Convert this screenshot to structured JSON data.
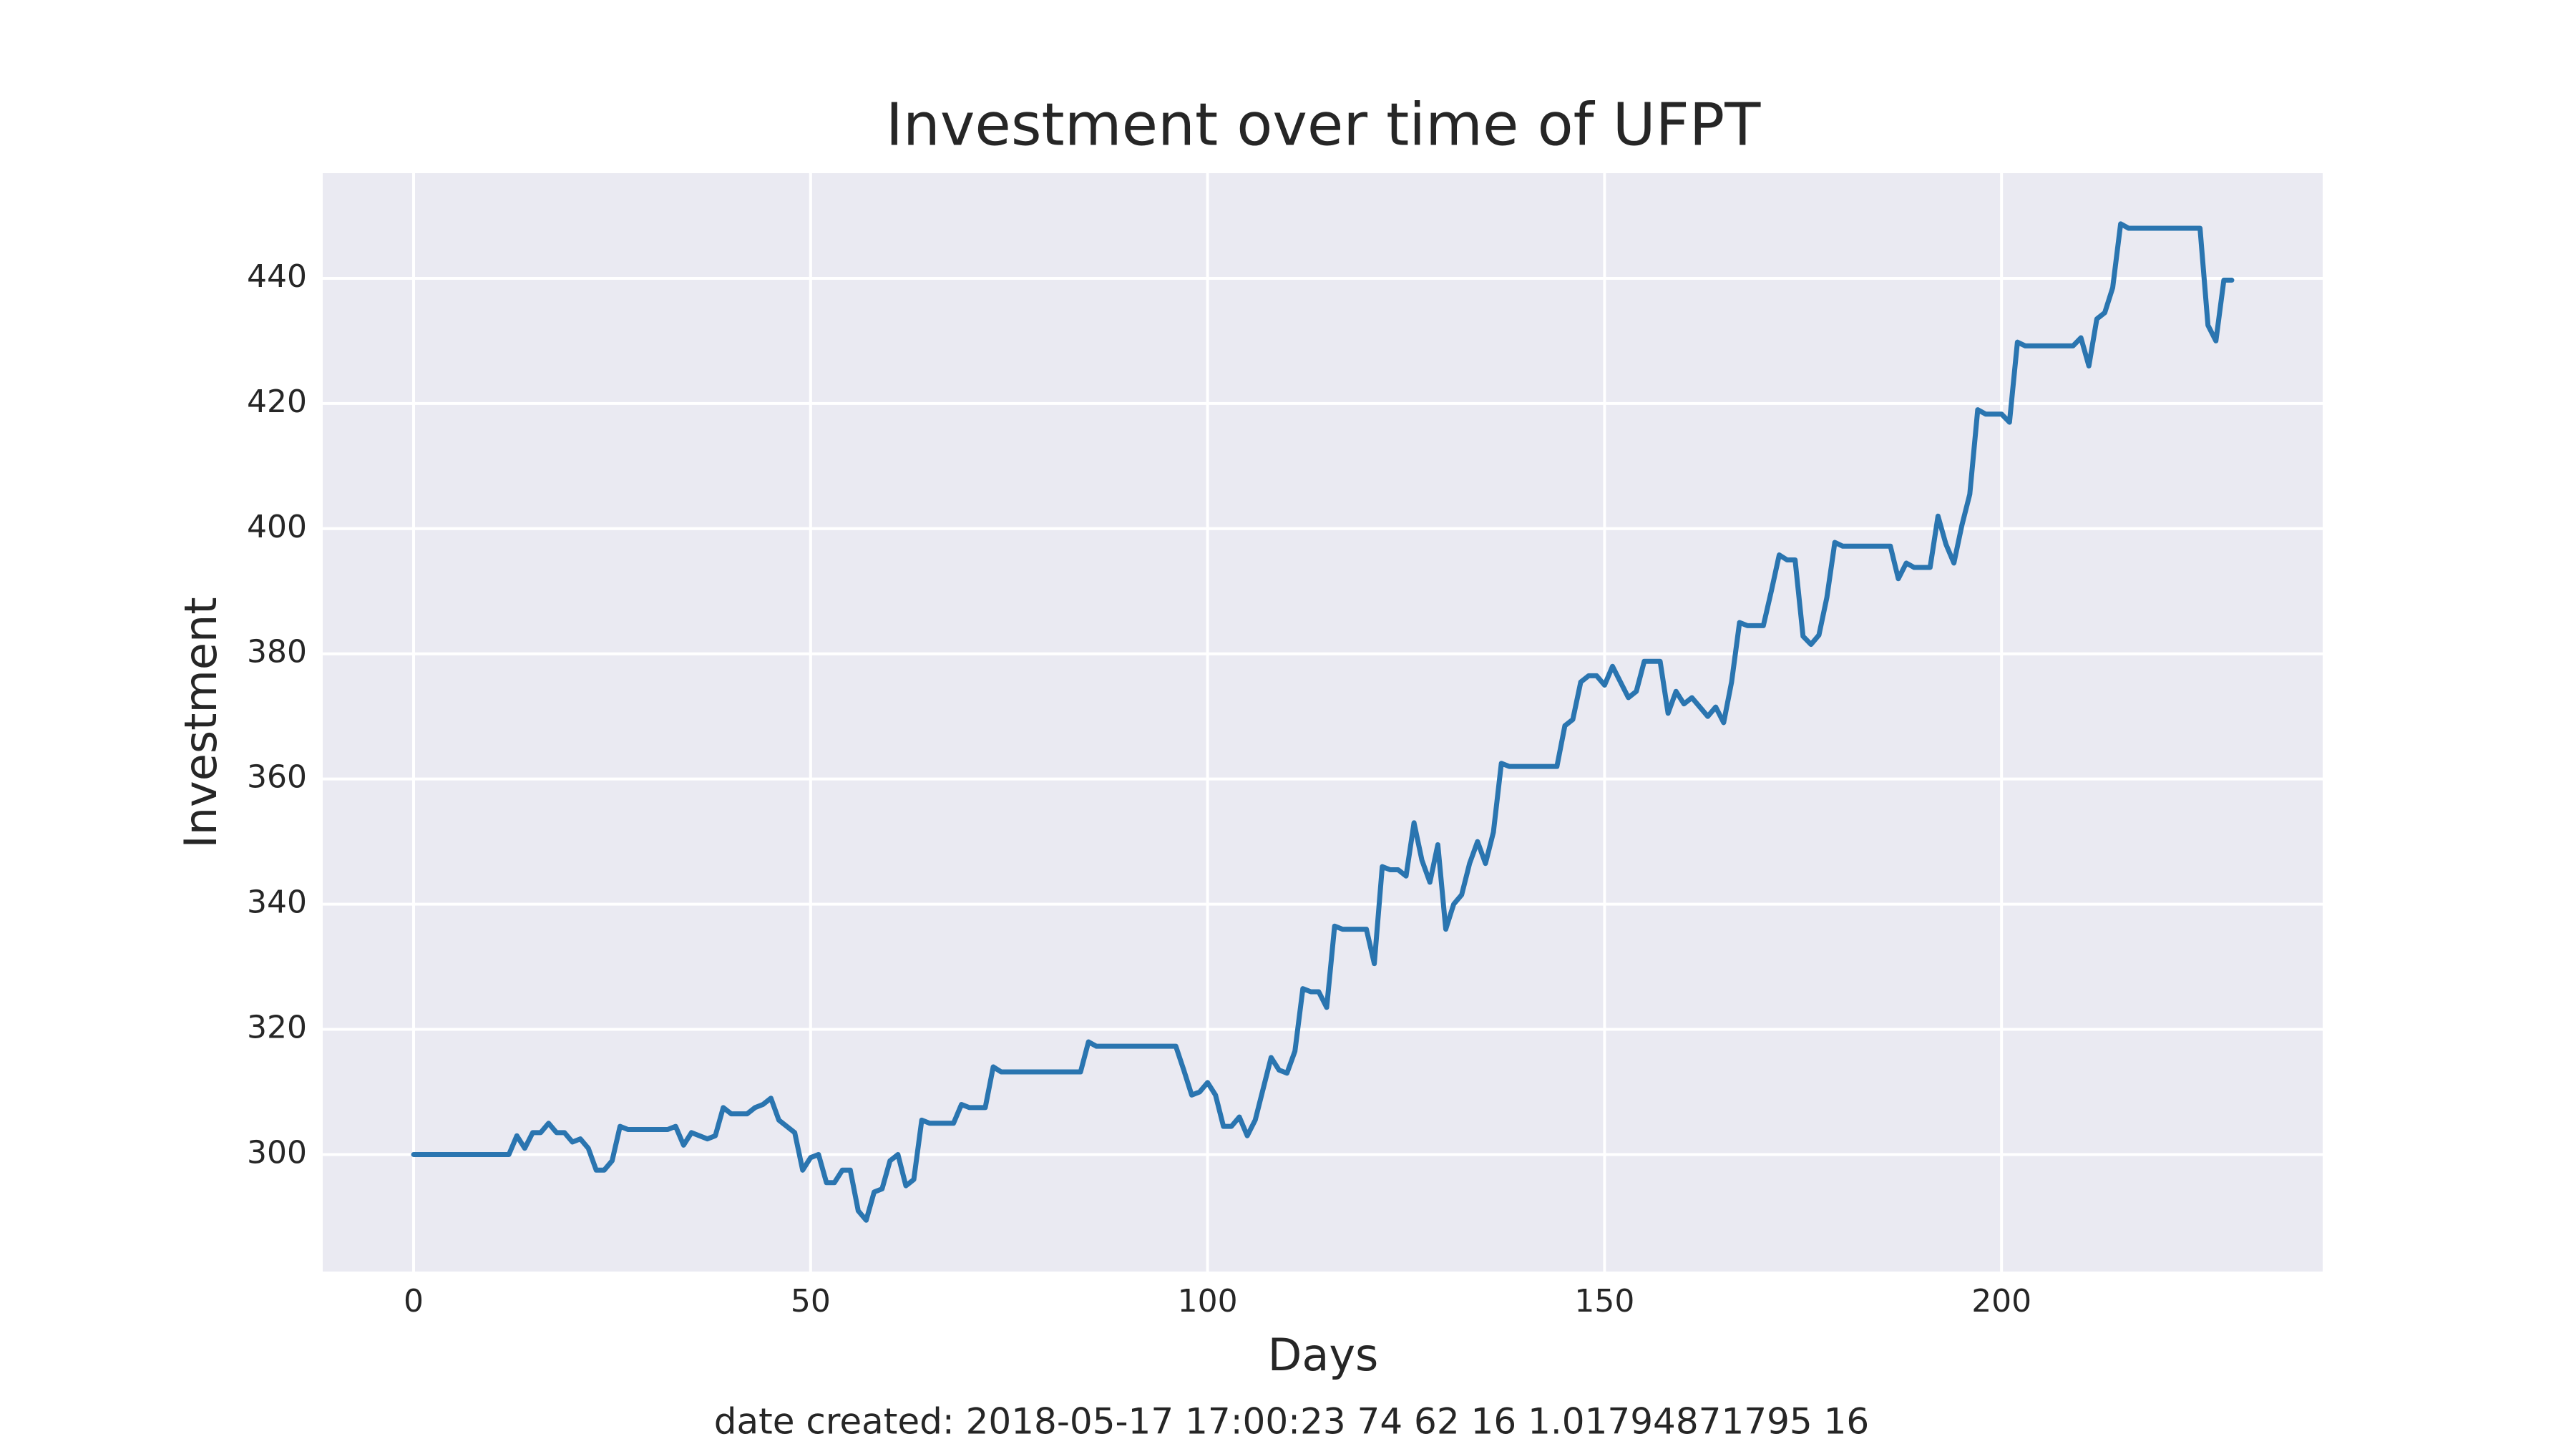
{
  "chart_data": {
    "type": "line",
    "title": "Investment over time of UFPT",
    "xlabel": "Days",
    "ylabel": "Investment",
    "footnote": "date created: 2018-05-17 17:00:23 74 62 16 1.01794871795 16",
    "color": "#2a75b0",
    "grid": true,
    "background": "#eaeaf2",
    "xlim": [
      -11.45,
      240.45
    ],
    "xticks": [
      0,
      50,
      100,
      150,
      200
    ],
    "ylim": [
      281.3,
      456.8
    ],
    "yticks": [
      300,
      320,
      340,
      360,
      380,
      400,
      420,
      440
    ],
    "x": [
      0,
      1,
      2,
      3,
      4,
      5,
      6,
      7,
      8,
      9,
      10,
      11,
      12,
      13,
      14,
      15,
      16,
      17,
      18,
      19,
      20,
      21,
      22,
      23,
      24,
      25,
      26,
      27,
      28,
      29,
      30,
      31,
      32,
      33,
      34,
      35,
      36,
      37,
      38,
      39,
      40,
      41,
      42,
      43,
      44,
      45,
      46,
      47,
      48,
      49,
      50,
      51,
      52,
      53,
      54,
      55,
      56,
      57,
      58,
      59,
      60,
      61,
      62,
      63,
      64,
      65,
      66,
      67,
      68,
      69,
      70,
      71,
      72,
      73,
      74,
      75,
      76,
      77,
      78,
      79,
      80,
      81,
      82,
      83,
      84,
      85,
      86,
      87,
      88,
      89,
      90,
      91,
      92,
      93,
      94,
      95,
      96,
      97,
      98,
      99,
      100,
      101,
      102,
      103,
      104,
      105,
      106,
      107,
      108,
      109,
      110,
      111,
      112,
      113,
      114,
      115,
      116,
      117,
      118,
      119,
      120,
      121,
      122,
      123,
      124,
      125,
      126,
      127,
      128,
      129,
      130,
      131,
      132,
      133,
      134,
      135,
      136,
      137,
      138,
      139,
      140,
      141,
      142,
      143,
      144,
      145,
      146,
      147,
      148,
      149,
      150,
      151,
      152,
      153,
      154,
      155,
      156,
      157,
      158,
      159,
      160,
      161,
      162,
      163,
      164,
      165,
      166,
      167,
      168,
      169,
      170,
      171,
      172,
      173,
      174,
      175,
      176,
      177,
      178,
      179,
      180,
      181,
      182,
      183,
      184,
      185,
      186,
      187,
      188,
      189,
      190,
      191,
      192,
      193,
      194,
      195,
      196,
      197,
      198,
      199,
      200,
      201,
      202,
      203,
      204,
      205,
      206,
      207,
      208,
      209,
      210,
      211,
      212,
      213,
      214,
      215,
      216,
      217,
      218,
      219,
      220,
      221,
      222,
      223,
      224,
      225,
      226,
      227,
      228,
      229
    ],
    "values": [
      300,
      300,
      300,
      300,
      300,
      300,
      300,
      300,
      300,
      300,
      300,
      300,
      300,
      303,
      301,
      303.5,
      303.5,
      305,
      303.5,
      303.5,
      302,
      302.5,
      301,
      297.5,
      297.5,
      299,
      304.5,
      304,
      304,
      304,
      304,
      304,
      304,
      304.5,
      301.5,
      303.5,
      303,
      302.5,
      303,
      307.5,
      306.5,
      306.5,
      306.5,
      307.5,
      308,
      309,
      305.5,
      304.5,
      303.5,
      297.5,
      299.5,
      300,
      295.5,
      295.5,
      297.5,
      297.5,
      291,
      289.5,
      294,
      294.5,
      299,
      300,
      295,
      296,
      305.5,
      305,
      305,
      305,
      305,
      308,
      307.5,
      307.5,
      307.5,
      314,
      313.2,
      313.2,
      313.2,
      313.2,
      313.2,
      313.2,
      313.2,
      313.2,
      313.2,
      313.2,
      313.2,
      318,
      317.3,
      317.3,
      317.3,
      317.3,
      317.3,
      317.3,
      317.3,
      317.3,
      317.3,
      317.3,
      317.3,
      313.5,
      309.5,
      310,
      311.5,
      309.5,
      304.5,
      304.5,
      306,
      303,
      305.5,
      310.5,
      315.5,
      313.5,
      313,
      316.5,
      326.5,
      326,
      326,
      323.5,
      336.5,
      336,
      336,
      336,
      336,
      330.5,
      346,
      345.5,
      345.5,
      344.5,
      353,
      347,
      343.5,
      349.5,
      336,
      340,
      341.5,
      346.5,
      350,
      346.5,
      351.5,
      362.5,
      362,
      362,
      362,
      362,
      362,
      362,
      362,
      368.5,
      369.5,
      375.5,
      376.5,
      376.5,
      375,
      378,
      375.5,
      373,
      374,
      378.8,
      378.8,
      378.8,
      370.5,
      374,
      372,
      373,
      371.5,
      370,
      371.5,
      369,
      375.5,
      385,
      384.5,
      384.5,
      384.5,
      390,
      395.8,
      395,
      395,
      382.8,
      381.5,
      383,
      389,
      397.8,
      397.2,
      397.2,
      397.2,
      397.2,
      397.2,
      397.2,
      397.2,
      392,
      394.5,
      393.8,
      393.8,
      393.8,
      402,
      397.5,
      394.5,
      400.5,
      405.5,
      419,
      418.3,
      418.3,
      418.3,
      417,
      429.8,
      429.2,
      429.2,
      429.2,
      429.2,
      429.2,
      429.2,
      429.2,
      430.5,
      426,
      433.5,
      434.5,
      438.5,
      448.7,
      448,
      448,
      448,
      448,
      448,
      448,
      448,
      448,
      448,
      448,
      432.5,
      430,
      439.7,
      439.7
    ]
  }
}
